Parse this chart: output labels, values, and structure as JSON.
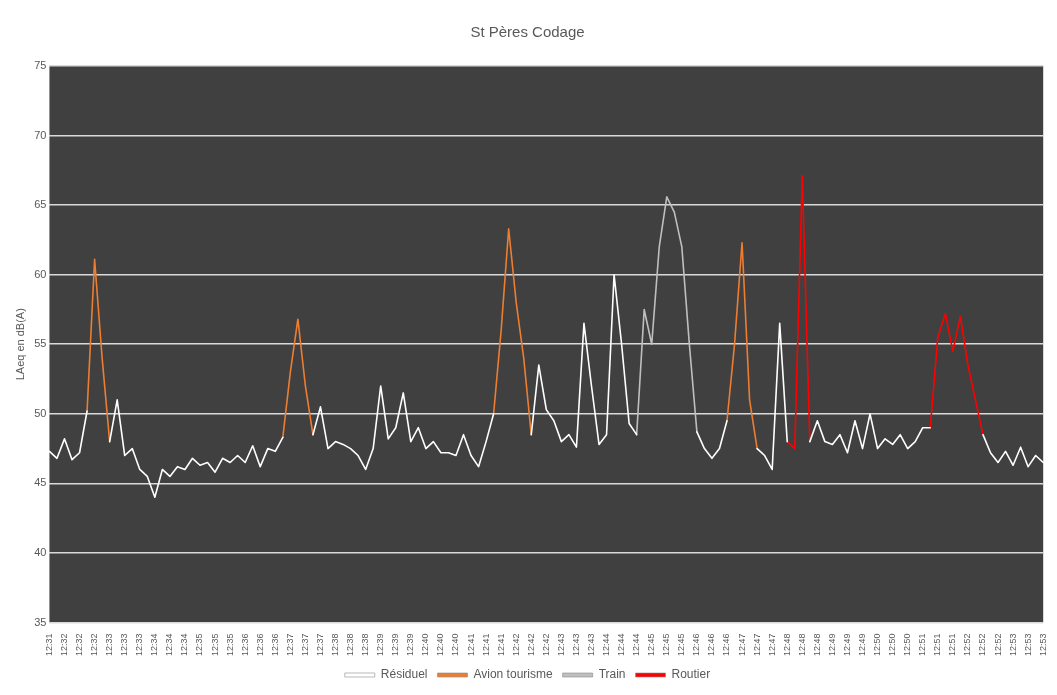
{
  "chart_data": {
    "type": "line",
    "title": "St Pères Codage",
    "ylabel": "LAeq en dB(A)",
    "categories": [
      "12:31",
      null,
      "12:32",
      null,
      "12:32",
      null,
      "12:32",
      null,
      "12:33",
      null,
      "12:33",
      null,
      "12:33",
      null,
      "12:34",
      null,
      "12:34",
      null,
      "12:34",
      null,
      "12:35",
      null,
      "12:35",
      null,
      "12:35",
      null,
      "12:36",
      null,
      "12:36",
      null,
      "12:36",
      null,
      "12:37",
      null,
      "12:37",
      null,
      "12:37",
      null,
      "12:38",
      null,
      "12:38",
      null,
      "12:38",
      null,
      "12:39",
      null,
      "12:39",
      null,
      "12:39",
      null,
      "12:40",
      null,
      "12:40",
      null,
      "12:40",
      null,
      "12:41",
      null,
      "12:41",
      null,
      "12:41",
      null,
      "12:42",
      null,
      "12:42",
      null,
      "12:42",
      null,
      "12:43",
      null,
      "12:43",
      null,
      "12:43",
      null,
      "12:44",
      null,
      "12:44",
      null,
      "12:44",
      null,
      "12:45",
      null,
      "12:45",
      null,
      "12:45",
      null,
      "12:46",
      null,
      "12:46",
      null,
      "12:46",
      null,
      "12:47",
      null,
      "12:47",
      null,
      "12:47",
      null,
      "12:48",
      null,
      "12:48",
      null,
      "12:48",
      null,
      "12:49",
      null,
      "12:49",
      null,
      "12:49",
      null,
      "12:50",
      null,
      "12:50",
      null,
      "12:50",
      null,
      "12:51",
      null,
      "12:51",
      null,
      "12:51",
      null,
      "12:52",
      null,
      "12:52",
      null,
      "12:52",
      null,
      "12:53",
      null,
      "12:53",
      null,
      "12:53"
    ],
    "series": [
      {
        "name": "Résiduel",
        "color": "#ffffff",
        "values": [
          47.3,
          46.8,
          48.2,
          46.7,
          47.2,
          50.2,
          null,
          null,
          48,
          51,
          47,
          47.5,
          46,
          45.5,
          44,
          46,
          45.5,
          46.2,
          46,
          46.8,
          46.3,
          46.5,
          45.8,
          46.8,
          46.5,
          47,
          46.5,
          47.7,
          46.2,
          47.5,
          47.3,
          48.3,
          null,
          null,
          null,
          48.5,
          50.5,
          47.5,
          48,
          47.8,
          47.5,
          47,
          46,
          47.5,
          52,
          48.2,
          49,
          51.5,
          48,
          49,
          47.5,
          48,
          47.2,
          47.2,
          47,
          48.5,
          47,
          46.2,
          48,
          50,
          null,
          null,
          null,
          null,
          48.5,
          53.5,
          50.3,
          49.5,
          48,
          48.5,
          47.6,
          56.5,
          52,
          47.8,
          48.5,
          60,
          55,
          49.3,
          48.5,
          null,
          null,
          null,
          null,
          null,
          null,
          null,
          48.7,
          47.5,
          46.8,
          47.5,
          49.5,
          null,
          null,
          null,
          47.5,
          47,
          46,
          56.5,
          48,
          null,
          null,
          48,
          49.5,
          48,
          47.8,
          48.5,
          47.2,
          49.5,
          47.5,
          50,
          47.5,
          48.2,
          47.8,
          48.5,
          47.5,
          48,
          49,
          49,
          null,
          null,
          null,
          null,
          null,
          null,
          48.5,
          47.2,
          46.5,
          47.3,
          46.3,
          47.6,
          46.2,
          47,
          46.5
        ]
      },
      {
        "name": "Avion tourisme",
        "color": "#ed7d31",
        "values": [
          null,
          null,
          null,
          null,
          null,
          50.2,
          61.1,
          54,
          48,
          null,
          null,
          null,
          null,
          null,
          null,
          null,
          null,
          null,
          null,
          null,
          null,
          null,
          null,
          null,
          null,
          null,
          null,
          null,
          null,
          null,
          null,
          48.3,
          53,
          56.8,
          52,
          48.5,
          null,
          null,
          null,
          null,
          null,
          null,
          null,
          null,
          null,
          null,
          null,
          null,
          null,
          null,
          null,
          null,
          null,
          null,
          null,
          null,
          null,
          null,
          null,
          50,
          56,
          63.3,
          58,
          54,
          48.5,
          null,
          null,
          null,
          null,
          null,
          null,
          null,
          null,
          null,
          null,
          null,
          null,
          null,
          null,
          null,
          null,
          null,
          null,
          null,
          null,
          null,
          null,
          null,
          null,
          null,
          49.5,
          55,
          62.3,
          51,
          47.5,
          null,
          null,
          null,
          null,
          null,
          null,
          null,
          null,
          null,
          null,
          null,
          null,
          null,
          null,
          null,
          null,
          null,
          null,
          null,
          null,
          null,
          null,
          null,
          null,
          null,
          null,
          null,
          null,
          null,
          null,
          null,
          null,
          null,
          null,
          null,
          null,
          null,
          null
        ]
      },
      {
        "name": "Train",
        "color": "#bfbfbf",
        "values": [
          null,
          null,
          null,
          null,
          null,
          null,
          null,
          null,
          null,
          null,
          null,
          null,
          null,
          null,
          null,
          null,
          null,
          null,
          null,
          null,
          null,
          null,
          null,
          null,
          null,
          null,
          null,
          null,
          null,
          null,
          null,
          null,
          null,
          null,
          null,
          null,
          null,
          null,
          null,
          null,
          null,
          null,
          null,
          null,
          null,
          null,
          null,
          null,
          null,
          null,
          null,
          null,
          null,
          null,
          null,
          null,
          null,
          null,
          null,
          null,
          null,
          null,
          null,
          null,
          null,
          null,
          null,
          null,
          null,
          null,
          null,
          null,
          null,
          null,
          null,
          null,
          null,
          null,
          48.5,
          57.5,
          55,
          62,
          65.6,
          64.5,
          62,
          55,
          48.7,
          null,
          null,
          null,
          null,
          null,
          null,
          null,
          null,
          null,
          null,
          null,
          null,
          null,
          null,
          null,
          null,
          null,
          null,
          null,
          null,
          null,
          null,
          null,
          null,
          null,
          null,
          null,
          null,
          null,
          null,
          null,
          null,
          null,
          null,
          null,
          null,
          null,
          null,
          null,
          null,
          null,
          null,
          null,
          null,
          null,
          null
        ]
      },
      {
        "name": "Routier",
        "color": "#ff0000",
        "values": [
          null,
          null,
          null,
          null,
          null,
          null,
          null,
          null,
          null,
          null,
          null,
          null,
          null,
          null,
          null,
          null,
          null,
          null,
          null,
          null,
          null,
          null,
          null,
          null,
          null,
          null,
          null,
          null,
          null,
          null,
          null,
          null,
          null,
          null,
          null,
          null,
          null,
          null,
          null,
          null,
          null,
          null,
          null,
          null,
          null,
          null,
          null,
          null,
          null,
          null,
          null,
          null,
          null,
          null,
          null,
          null,
          null,
          null,
          null,
          null,
          null,
          null,
          null,
          null,
          null,
          null,
          null,
          null,
          null,
          null,
          null,
          null,
          null,
          null,
          null,
          null,
          null,
          null,
          null,
          null,
          null,
          null,
          null,
          null,
          null,
          null,
          null,
          null,
          null,
          null,
          null,
          null,
          null,
          null,
          null,
          null,
          null,
          null,
          48,
          47.5,
          67.1,
          48,
          null,
          null,
          null,
          null,
          null,
          null,
          null,
          null,
          null,
          null,
          null,
          null,
          null,
          null,
          null,
          49,
          55.5,
          57.2,
          54.5,
          57,
          53.5,
          51,
          48.5,
          null,
          null,
          null,
          null,
          null,
          null,
          null,
          null
        ]
      }
    ],
    "ylim": [
      35,
      75
    ],
    "yticks": [
      35,
      40,
      45,
      50,
      55,
      60,
      65,
      70,
      75
    ],
    "grid": "y",
    "legend": "bottom"
  }
}
